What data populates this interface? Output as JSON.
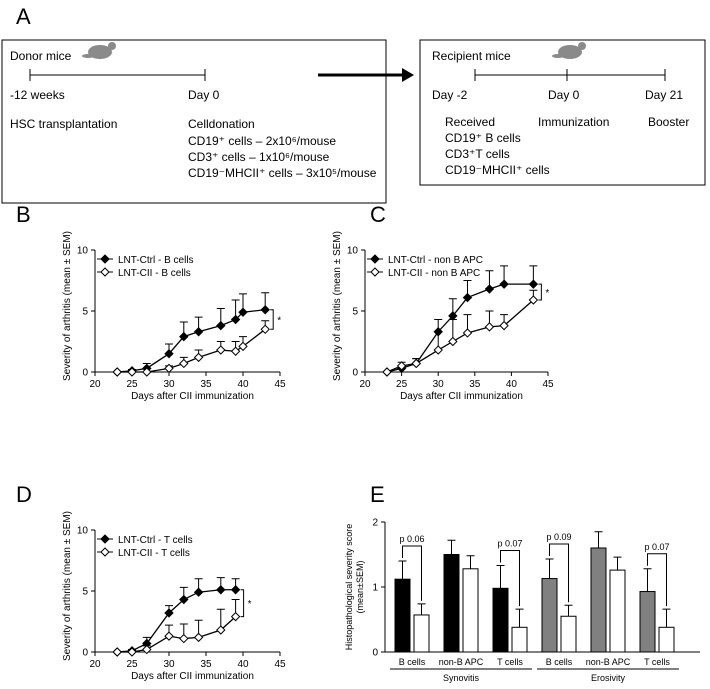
{
  "diagram": {
    "letter": "A",
    "donor": {
      "title": "Donor mice",
      "start": "-12 weeks",
      "end": "Day 0",
      "start_event": "HSC transplantation",
      "end_event": "Celldonation",
      "cells": [
        "CD19⁺ cells – 2x10⁶/mouse",
        "CD3⁺ cells – 1x10⁶/mouse",
        "CD19⁻MHCII⁺ cells – 3x10⁵/mouse"
      ]
    },
    "recipient": {
      "title": "Recipient mice",
      "days": [
        "Day -2",
        "Day 0",
        "Day 21"
      ],
      "events": [
        "Received",
        "Immunization",
        "Booster"
      ],
      "cells": [
        "CD19⁺ B cells",
        "CD3⁺T cells",
        "CD19⁻MHCII⁺ cells"
      ]
    }
  },
  "chart_data": [
    {
      "type": "line",
      "letter": "B",
      "xlabel": "Days after CII immunization",
      "ylabel": "Severity of arthritis (mean ± SEM)",
      "xlim": [
        20,
        45
      ],
      "xticks": [
        20,
        25,
        30,
        35,
        40,
        45
      ],
      "ylim": [
        0,
        10
      ],
      "yticks": [
        0,
        5,
        10
      ],
      "legend": "upper left",
      "annotation": "*",
      "x": [
        23,
        25,
        27,
        30,
        32,
        34,
        37,
        39,
        40,
        43
      ],
      "series": [
        {
          "name": "LNT-Ctrl - B cells",
          "color": "#000000",
          "marker": "filled",
          "values": [
            0,
            0.1,
            0.3,
            1.5,
            2.9,
            3.3,
            3.8,
            4.3,
            4.9,
            5.1
          ],
          "errors": [
            0,
            0.1,
            0.4,
            0.8,
            1.2,
            1.2,
            1.4,
            1.6,
            1.5,
            1.4
          ]
        },
        {
          "name": "LNT-CII - B cells",
          "color": "#000000",
          "marker": "open",
          "values": [
            0,
            0,
            0,
            0.3,
            0.7,
            1.2,
            1.8,
            1.7,
            2.1,
            3.5
          ],
          "errors": [
            0,
            0,
            0,
            0.2,
            0.5,
            0.6,
            0.7,
            0.8,
            0.8,
            0.7
          ]
        }
      ]
    },
    {
      "type": "line",
      "letter": "C",
      "xlabel": "Days after CII immunization",
      "ylabel": "Severity of arthritis (mean ± SEM)",
      "xlim": [
        20,
        45
      ],
      "xticks": [
        20,
        25,
        30,
        35,
        40,
        45
      ],
      "ylim": [
        0,
        10
      ],
      "yticks": [
        0,
        5,
        10
      ],
      "legend": "upper left",
      "annotation": "*",
      "x": [
        23,
        25,
        27,
        30,
        32,
        34,
        37,
        39,
        43
      ],
      "series": [
        {
          "name": "LNT-Ctrl - non B APC",
          "color": "#000000",
          "marker": "filled",
          "values": [
            0,
            0.3,
            0.7,
            3.3,
            4.6,
            6.1,
            6.8,
            7.2,
            7.2
          ],
          "errors": [
            0,
            0.2,
            0.4,
            1.0,
            1.4,
            1.4,
            1.5,
            1.5,
            1.5
          ]
        },
        {
          "name": "LNT-CII - non B APC",
          "color": "#000000",
          "marker": "open",
          "values": [
            0,
            0.5,
            0.7,
            1.8,
            2.5,
            3.2,
            3.7,
            3.8,
            5.9
          ],
          "errors": [
            0,
            0.3,
            0.4,
            1.5,
            1.8,
            1.5,
            1.3,
            0.9,
            0.8
          ]
        }
      ]
    },
    {
      "type": "line",
      "letter": "D",
      "xlabel": "Days after CII immunization",
      "ylabel": "Severity of arthritis (mean ± SEM)",
      "xlim": [
        20,
        45
      ],
      "xticks": [
        20,
        25,
        30,
        35,
        40,
        45
      ],
      "ylim": [
        0,
        10
      ],
      "yticks": [
        0,
        5,
        10
      ],
      "legend": "upper left",
      "annotation": "*",
      "x": [
        23,
        25,
        27,
        30,
        32,
        34,
        37,
        39
      ],
      "series": [
        {
          "name": "LNT-Ctrl - T cells",
          "color": "#000000",
          "marker": "filled",
          "values": [
            0,
            0.1,
            0.7,
            3.2,
            4.3,
            4.9,
            5.1,
            5.1
          ],
          "errors": [
            0,
            0.1,
            0.5,
            0.6,
            1.0,
            1.1,
            1.0,
            0.9
          ]
        },
        {
          "name": "LNT-CII - T cells",
          "color": "#000000",
          "marker": "open",
          "values": [
            0,
            0,
            0.2,
            1.3,
            1.1,
            1.2,
            1.8,
            2.9
          ],
          "errors": [
            0,
            0,
            0.3,
            0.9,
            1.2,
            1.4,
            1.7,
            1.4
          ]
        }
      ]
    },
    {
      "type": "bar",
      "letter": "E",
      "ylabel": [
        "Histopathological severity score",
        "(mean±SEM)"
      ],
      "ylim": [
        0,
        2
      ],
      "yticks": [
        0,
        1,
        2
      ],
      "categories": [
        "B cells",
        "non-B APC",
        "T cells",
        "B cells",
        "non-B APC",
        "T cells"
      ],
      "groups": [
        {
          "label": "Synovitis",
          "size": 3
        },
        {
          "label": "Erosivity",
          "size": 3
        }
      ],
      "series": [
        {
          "colors": [
            "#000000",
            "#000000",
            "#000000",
            "#808080",
            "#808080",
            "#808080"
          ],
          "values": [
            1.12,
            1.5,
            0.98,
            1.13,
            1.6,
            0.93
          ],
          "errors": [
            0.28,
            0.22,
            0.35,
            0.3,
            0.25,
            0.35
          ]
        },
        {
          "colors": [
            "#ffffff",
            "#ffffff",
            "#ffffff",
            "#ffffff",
            "#ffffff",
            "#ffffff"
          ],
          "values": [
            0.57,
            1.28,
            0.38,
            0.55,
            1.26,
            0.38
          ],
          "errors": [
            0.17,
            0.2,
            0.28,
            0.17,
            0.2,
            0.28
          ]
        }
      ],
      "annotations": [
        {
          "text": "p 0.06",
          "category": 0
        },
        {
          "text": "p 0.07",
          "category": 2
        },
        {
          "text": "p 0.09",
          "category": 3
        },
        {
          "text": "p 0.07",
          "category": 5
        }
      ]
    }
  ]
}
